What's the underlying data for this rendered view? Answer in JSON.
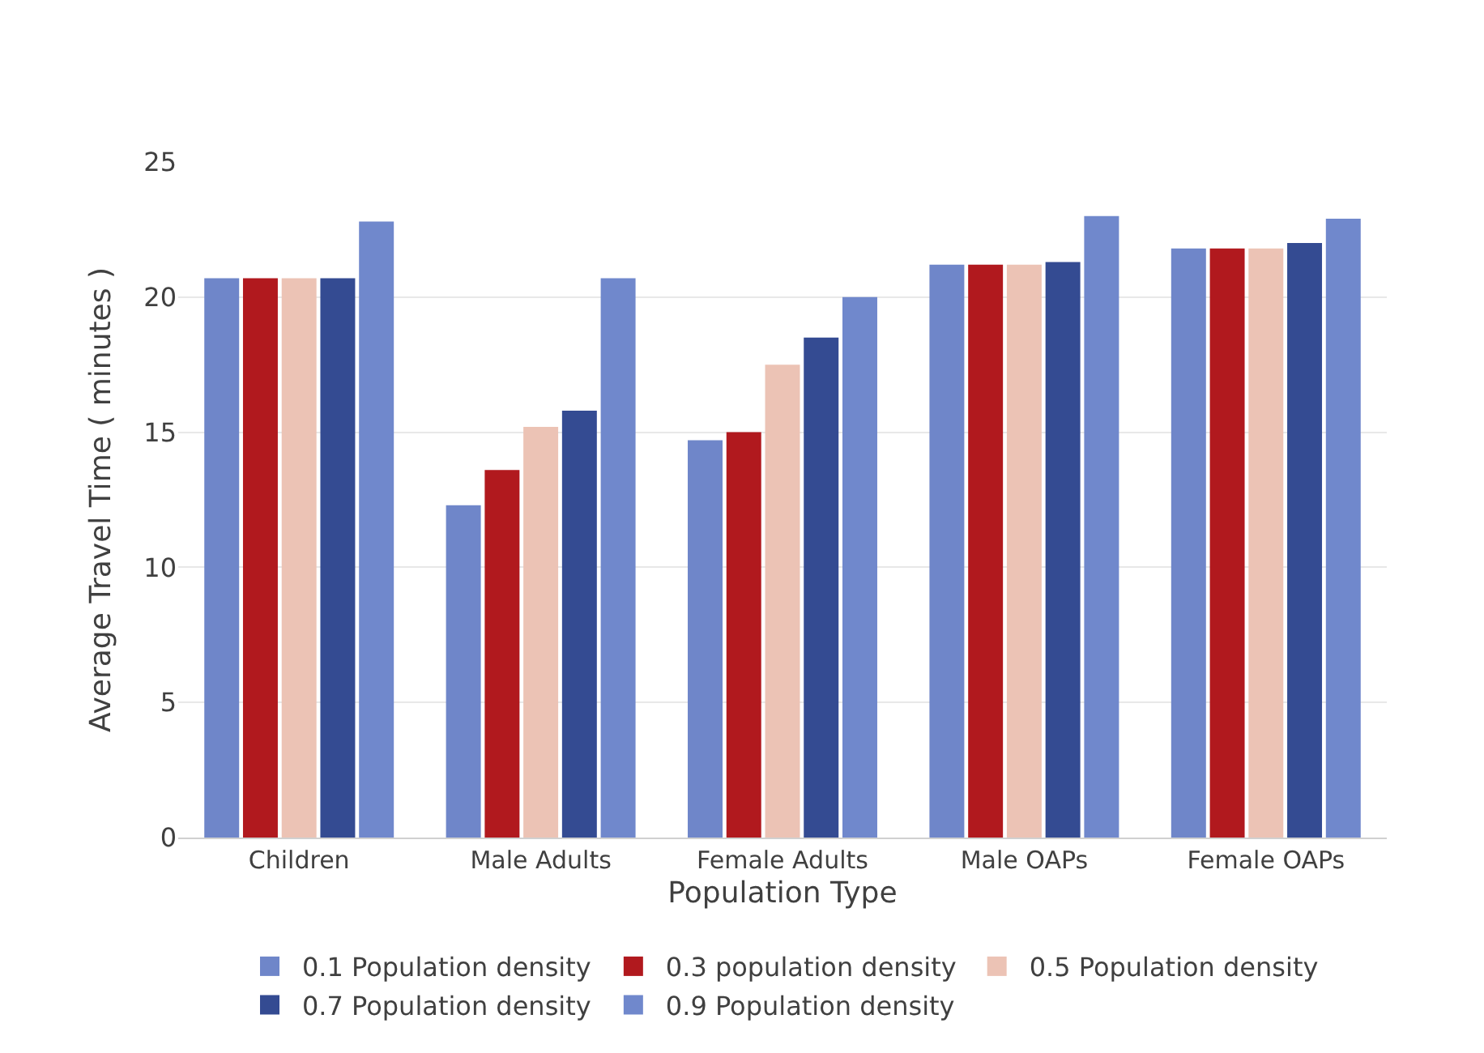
{
  "chart_data": {
    "type": "bar",
    "xlabel": "Population Type",
    "ylabel": "Average Travel Time ( minutes )",
    "categories": [
      "Children",
      "Male Adults",
      "Female Adults",
      "Male OAPs",
      "Female OAPs"
    ],
    "series": [
      {
        "name": "0.1 Population density",
        "color": "#6f86c9",
        "values": [
          20.7,
          12.3,
          14.7,
          21.2,
          21.8
        ]
      },
      {
        "name": "0.3 population density",
        "color": "#b1191e",
        "values": [
          20.7,
          13.6,
          15.0,
          21.2,
          21.8
        ]
      },
      {
        "name": "0.5 Population density",
        "color": "#ecc3b5",
        "values": [
          20.7,
          15.2,
          17.5,
          21.2,
          21.8
        ]
      },
      {
        "name": "0.7 Population density",
        "color": "#344b92",
        "values": [
          20.7,
          15.8,
          18.5,
          21.3,
          22.0
        ]
      },
      {
        "name": "0.9 Population density",
        "color": "#7088cc",
        "values": [
          22.8,
          20.7,
          20.0,
          23.0,
          22.9
        ]
      }
    ],
    "ylim": [
      0,
      25
    ],
    "yticks": [
      0,
      5,
      10,
      15,
      20,
      25
    ],
    "grid": "y",
    "legend": "bottom"
  }
}
